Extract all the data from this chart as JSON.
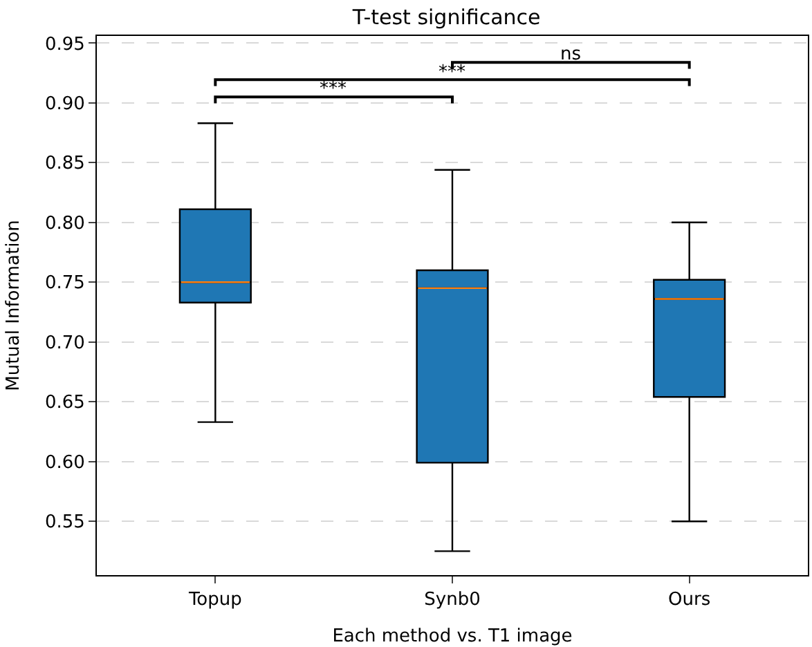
{
  "chart_data": {
    "type": "box",
    "title": "T-test significance",
    "xlabel": "Each method vs. T1 image",
    "ylabel": "Mutual Information",
    "categories": [
      "Topup",
      "Synb0",
      "Ours"
    ],
    "series": [
      {
        "color": "#1f77b4",
        "boxes": [
          {
            "low": 0.633,
            "q1": 0.733,
            "median": 0.75,
            "q3": 0.811,
            "high": 0.883
          },
          {
            "low": 0.525,
            "q1": 0.599,
            "median": 0.745,
            "q3": 0.76,
            "high": 0.844
          },
          {
            "low": 0.55,
            "q1": 0.654,
            "median": 0.736,
            "q3": 0.752,
            "high": 0.8
          }
        ]
      }
    ],
    "ylim": [
      0.505,
      0.956
    ],
    "yticks": [
      0.55,
      {
        "value": 0.6,
        "label": "0.60"
      },
      0.65,
      {
        "value": 0.7,
        "label": "0.70"
      },
      0.75,
      {
        "value": 0.8,
        "label": "0.80"
      },
      0.85,
      {
        "value": 0.9,
        "label": "0.90"
      },
      0.95
    ],
    "grid": "y",
    "annotations": [
      "***",
      "***",
      "ns"
    ]
  }
}
